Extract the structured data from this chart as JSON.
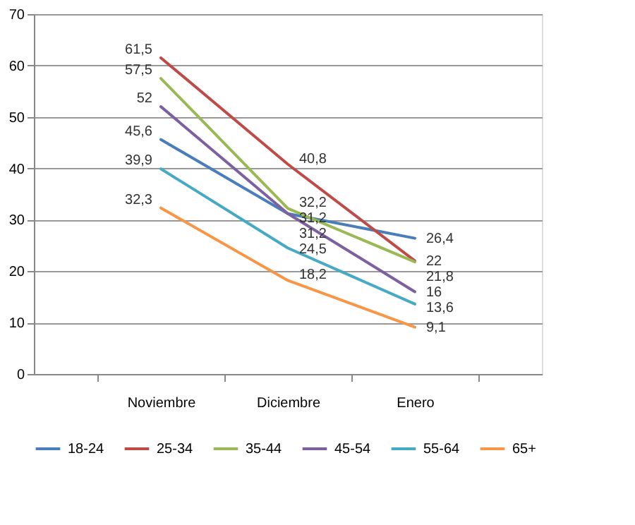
{
  "chart_data": {
    "type": "line",
    "categories": [
      "Noviembre",
      "Diciembre",
      "Enero"
    ],
    "series": [
      {
        "name": "18-24",
        "color": "#4a7ebb",
        "values": [
          45.6,
          31.2,
          26.4
        ],
        "value_labels": [
          "45,6",
          "31,2",
          "26,4"
        ]
      },
      {
        "name": "25-34",
        "color": "#be4b48",
        "values": [
          61.5,
          40.8,
          22
        ],
        "value_labels": [
          "61,5",
          "40,8",
          "22"
        ]
      },
      {
        "name": "35-44",
        "color": "#98b954",
        "values": [
          57.5,
          32.2,
          21.8
        ],
        "value_labels": [
          "57,5",
          "32,2",
          "21,8"
        ]
      },
      {
        "name": "45-54",
        "color": "#7d60a0",
        "values": [
          52,
          31.2,
          16
        ],
        "value_labels": [
          "52",
          "31,2",
          "16"
        ]
      },
      {
        "name": "55-64",
        "color": "#46aac5",
        "values": [
          39.9,
          24.5,
          13.6
        ],
        "value_labels": [
          "39,9",
          "24,5",
          "13,6"
        ]
      },
      {
        "name": "65+",
        "color": "#f79646",
        "values": [
          32.3,
          18.2,
          9.1
        ],
        "value_labels": [
          "32,3",
          "18,2",
          "9,1"
        ]
      }
    ],
    "ylim": [
      0,
      70
    ],
    "yticks": [
      0,
      10,
      20,
      30,
      40,
      50,
      60,
      70
    ],
    "grid": "y",
    "legend": "bottom",
    "marker": "none",
    "line_style": "solid"
  }
}
